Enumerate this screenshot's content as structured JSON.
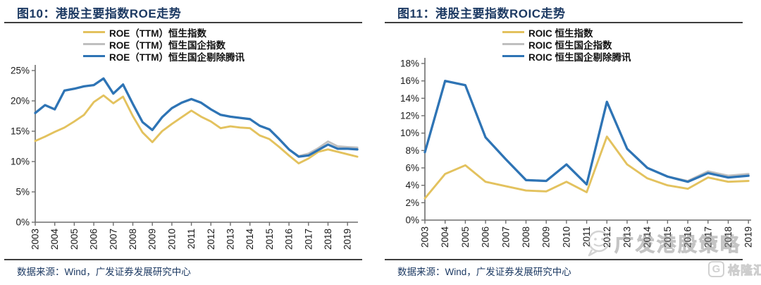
{
  "palette": {
    "title_color": "#1d3a63",
    "axis_color": "#6e6e6e",
    "tick_label_color": "#1a1a1a",
    "rule_color": "#3f3f3f",
    "hsi_yellow": "#E3C25E",
    "hscei_gray": "#BFBFBF",
    "hscei_ex_tencent_blue": "#2E74B5"
  },
  "watermark": {
    "text": "广发港股策略",
    "icon": "smiley-speech-bubble-icon"
  },
  "brand_logo": {
    "icon_letter": "G",
    "text": "格隆汇"
  },
  "chart_data": [
    {
      "type": "line",
      "title": "图10：港股主要指数ROE走势",
      "source": "数据来源：Wind，广发证券发展研究中心",
      "xlabel": "",
      "ylabel": "",
      "ylim": [
        0,
        25
      ],
      "y_ticks": [
        0,
        5,
        10,
        15,
        20,
        25
      ],
      "y_tick_suffix": "%",
      "grid": false,
      "legend_position": "top",
      "x_tick_labels": [
        "2003",
        "2004",
        "2005",
        "2006",
        "2007",
        "2008",
        "2009",
        "2010",
        "2011",
        "2012",
        "2013",
        "2014",
        "2015",
        "2016",
        "2017",
        "2018",
        "2019"
      ],
      "x": [
        2003,
        2003.5,
        2004,
        2004.5,
        2005,
        2005.5,
        2006,
        2006.5,
        2007,
        2007.5,
        2008,
        2008.5,
        2009,
        2009.5,
        2010,
        2010.5,
        2011,
        2011.5,
        2012,
        2012.5,
        2013,
        2013.5,
        2014,
        2014.5,
        2015,
        2015.5,
        2016,
        2016.5,
        2017,
        2017.5,
        2018,
        2018.5,
        2019,
        2019.5
      ],
      "series": [
        {
          "name": "ROE（TTM）恒生指数",
          "color": "#E3C25E",
          "values": [
            13.4,
            14.1,
            14.9,
            15.6,
            16.6,
            17.7,
            19.8,
            20.9,
            19.6,
            20.7,
            17.5,
            14.8,
            13.2,
            15.0,
            16.2,
            17.3,
            18.4,
            17.4,
            16.6,
            15.5,
            15.8,
            15.6,
            15.5,
            14.3,
            13.7,
            12.4,
            11.0,
            9.7,
            10.5,
            11.6,
            12.0,
            11.6,
            11.2,
            10.8
          ]
        },
        {
          "name": "ROE（TTM）恒生国企指数",
          "color": "#BFBFBF",
          "values": [
            18.0,
            19.3,
            18.6,
            21.7,
            22.0,
            22.4,
            22.6,
            23.7,
            21.2,
            22.7,
            19.5,
            16.5,
            15.2,
            17.3,
            18.8,
            19.7,
            20.3,
            19.7,
            18.6,
            17.7,
            17.4,
            17.2,
            17.0,
            15.9,
            15.3,
            13.7,
            12.0,
            10.9,
            11.3,
            12.2,
            13.3,
            12.5,
            12.4,
            12.3
          ]
        },
        {
          "name": "ROE（TTM）恒生国企剔除腾讯",
          "color": "#2E74B5",
          "values": [
            18.0,
            19.3,
            18.6,
            21.7,
            22.0,
            22.4,
            22.6,
            23.7,
            21.2,
            22.7,
            19.5,
            16.5,
            15.2,
            17.3,
            18.8,
            19.7,
            20.3,
            19.7,
            18.6,
            17.7,
            17.4,
            17.2,
            17.0,
            15.9,
            15.3,
            13.7,
            12.0,
            10.8,
            11.0,
            11.9,
            12.8,
            12.1,
            12.1,
            12.0
          ]
        }
      ]
    },
    {
      "type": "line",
      "title": "图11：港股主要指数ROIC走势",
      "source": "数据来源：Wind，广发证券发展研究中心",
      "xlabel": "",
      "ylabel": "",
      "ylim": [
        0,
        18
      ],
      "y_ticks": [
        0,
        2,
        4,
        6,
        8,
        10,
        12,
        14,
        16,
        18
      ],
      "y_tick_suffix": "%",
      "grid": false,
      "legend_position": "top",
      "x_tick_labels": [
        "2003",
        "2004",
        "2005",
        "2006",
        "2007",
        "2008",
        "2009",
        "2010",
        "2011",
        "2012",
        "2013",
        "2014",
        "2015",
        "2016",
        "2017",
        "2018",
        "2019"
      ],
      "x": [
        2003,
        2004,
        2005,
        2006,
        2007,
        2008,
        2009,
        2010,
        2011,
        2012,
        2013,
        2014,
        2015,
        2016,
        2017,
        2018,
        2019
      ],
      "series": [
        {
          "name": "ROIC 恒生指数",
          "color": "#E3C25E",
          "values": [
            2.5,
            5.3,
            6.3,
            4.4,
            3.9,
            3.4,
            3.3,
            4.4,
            3.2,
            9.6,
            6.4,
            4.8,
            4.0,
            3.6,
            4.9,
            4.4,
            4.5
          ]
        },
        {
          "name": "ROIC 恒生国企指数",
          "color": "#BFBFBF",
          "values": [
            7.8,
            16.0,
            15.5,
            9.5,
            7.0,
            4.6,
            4.5,
            6.4,
            4.1,
            13.6,
            8.2,
            6.0,
            5.0,
            4.5,
            5.6,
            5.1,
            5.3
          ]
        },
        {
          "name": "ROIC 恒生国企剔除腾讯",
          "color": "#2E74B5",
          "values": [
            7.8,
            16.0,
            15.5,
            9.5,
            7.0,
            4.6,
            4.5,
            6.4,
            4.1,
            13.6,
            8.2,
            6.0,
            5.0,
            4.4,
            5.4,
            4.9,
            5.1
          ]
        }
      ]
    }
  ]
}
